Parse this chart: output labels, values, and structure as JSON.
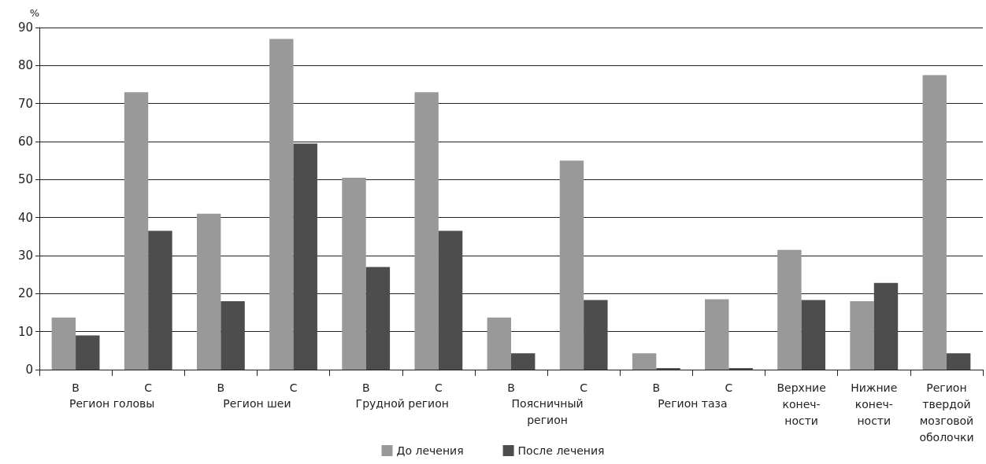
{
  "chart_data": {
    "type": "bar",
    "ylabel": "%",
    "categories": [
      "В",
      "С",
      "В",
      "С",
      "В",
      "С",
      "В",
      "С",
      "В",
      "С",
      "Верхние\nконеч-\nности",
      "Нижние\nконеч-\nности",
      "Регион\nтвердой\nмозговой\nоболочки"
    ],
    "annotations": [
      "Регион головы",
      "Регион шеи",
      "Грудной регион",
      "Поясничный\nрегион",
      "Регион таза"
    ],
    "series": [
      {
        "name": "До лечения",
        "color": "#999999",
        "values": [
          13.7,
          73,
          41,
          87,
          50.5,
          73,
          13.7,
          55,
          4.3,
          18.5,
          31.5,
          18,
          77.5
        ]
      },
      {
        "name": "После лечения",
        "color": "#4d4d4d",
        "values": [
          9,
          36.5,
          18,
          59.5,
          27,
          36.5,
          4.3,
          18.3,
          0.4,
          0.4,
          18.3,
          22.8,
          4.3
        ]
      }
    ],
    "ylim": [
      0,
      90
    ],
    "yticks": [
      0,
      10,
      20,
      30,
      40,
      50,
      60,
      70,
      80,
      90
    ],
    "grid": "y",
    "legend": "bottom"
  }
}
